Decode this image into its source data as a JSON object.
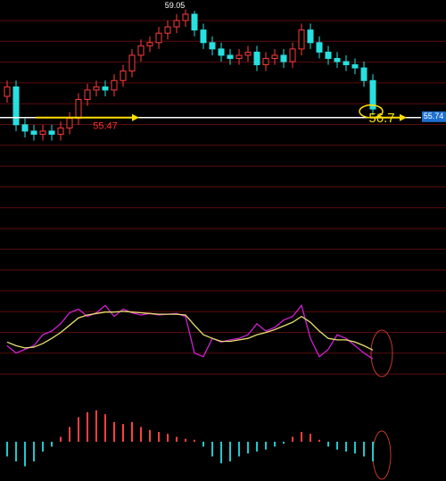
{
  "chart_data": [
    {
      "type": "candlestick",
      "open": [
        56.3,
        56.6,
        55.4,
        55.2,
        55.1,
        55.2,
        55.1,
        55.3,
        55.6,
        56.2,
        56.5,
        56.6,
        56.5,
        56.8,
        57.1,
        57.6,
        57.9,
        58.0,
        58.3,
        58.5,
        58.7,
        58.9,
        58.4,
        58.0,
        57.8,
        57.6,
        57.5,
        57.6,
        57.7,
        57.3,
        57.5,
        57.6,
        57.4,
        57.8,
        58.4,
        58.0,
        57.7,
        57.5,
        57.4,
        57.3,
        57.2,
        56.8
      ],
      "high": [
        56.8,
        56.8,
        55.6,
        55.4,
        55.4,
        55.4,
        55.5,
        55.8,
        56.4,
        56.7,
        56.8,
        56.8,
        57.0,
        57.3,
        57.8,
        58.1,
        58.2,
        58.5,
        58.7,
        58.9,
        59.05,
        59.0,
        58.6,
        58.2,
        58.0,
        57.8,
        57.8,
        57.9,
        57.9,
        57.7,
        57.8,
        57.8,
        58.0,
        58.6,
        58.6,
        58.2,
        57.9,
        57.7,
        57.6,
        57.5,
        57.4,
        57.0
      ],
      "low": [
        56.1,
        55.2,
        55.0,
        54.9,
        54.9,
        54.9,
        54.9,
        55.1,
        55.4,
        56.0,
        56.3,
        56.3,
        56.3,
        56.6,
        56.9,
        57.4,
        57.7,
        57.8,
        58.1,
        58.3,
        58.5,
        58.2,
        57.8,
        57.6,
        57.4,
        57.3,
        57.3,
        57.4,
        57.1,
        57.1,
        57.3,
        57.2,
        57.2,
        57.6,
        57.8,
        57.5,
        57.3,
        57.2,
        57.1,
        57.0,
        56.6,
        55.7
      ],
      "close": [
        56.6,
        55.4,
        55.2,
        55.1,
        55.2,
        55.1,
        55.3,
        55.6,
        56.2,
        56.5,
        56.6,
        56.5,
        56.8,
        57.1,
        57.6,
        57.9,
        58.0,
        58.3,
        58.5,
        58.7,
        58.9,
        58.4,
        58.0,
        57.8,
        57.6,
        57.5,
        57.6,
        57.7,
        57.3,
        57.5,
        57.6,
        57.4,
        57.8,
        58.4,
        58.0,
        57.7,
        57.5,
        57.4,
        57.3,
        57.2,
        56.8,
        55.9
      ],
      "up_color": "#ff3b3b",
      "down_color": "#27e0e0",
      "ylim": [
        53.7,
        59.35
      ],
      "price_line": 55.74,
      "annotations": [
        "59.05",
        "55.47",
        "56.7"
      ]
    },
    {
      "type": "line",
      "ylim": [
        0,
        100
      ],
      "series": [
        {
          "color": "#d020d0",
          "values": [
            30,
            20,
            25,
            30,
            45,
            50,
            60,
            75,
            80,
            70,
            75,
            85,
            70,
            80,
            75,
            72,
            74,
            72,
            73,
            74,
            70,
            20,
            15,
            40,
            35,
            38,
            40,
            45,
            60,
            50,
            55,
            65,
            70,
            85,
            40,
            15,
            25,
            45,
            40,
            30,
            20,
            12
          ]
        },
        {
          "color": "#e8e070",
          "values": [
            35,
            30,
            27,
            28,
            33,
            40,
            48,
            58,
            68,
            72,
            74,
            76,
            76,
            77,
            76,
            75,
            74,
            73,
            73,
            73,
            72,
            58,
            45,
            40,
            36,
            36,
            38,
            40,
            45,
            48,
            52,
            57,
            62,
            70,
            62,
            50,
            40,
            38,
            38,
            35,
            30,
            24
          ]
        }
      ]
    },
    {
      "type": "bar",
      "ylim": [
        -0.4,
        0.5
      ],
      "up_color": "#ff4040",
      "down_color": "#20c8d0",
      "values": [
        -0.15,
        -0.2,
        -0.25,
        -0.2,
        -0.1,
        -0.05,
        0.05,
        0.15,
        0.25,
        0.3,
        0.32,
        0.28,
        0.2,
        0.18,
        0.2,
        0.15,
        0.12,
        0.1,
        0.08,
        0.05,
        0.03,
        0.02,
        -0.05,
        -0.15,
        -0.22,
        -0.2,
        -0.15,
        -0.12,
        -0.1,
        -0.08,
        -0.05,
        -0.02,
        0.05,
        0.1,
        0.08,
        0.02,
        -0.05,
        -0.08,
        -0.1,
        -0.12,
        -0.15,
        -0.2
      ]
    }
  ]
}
